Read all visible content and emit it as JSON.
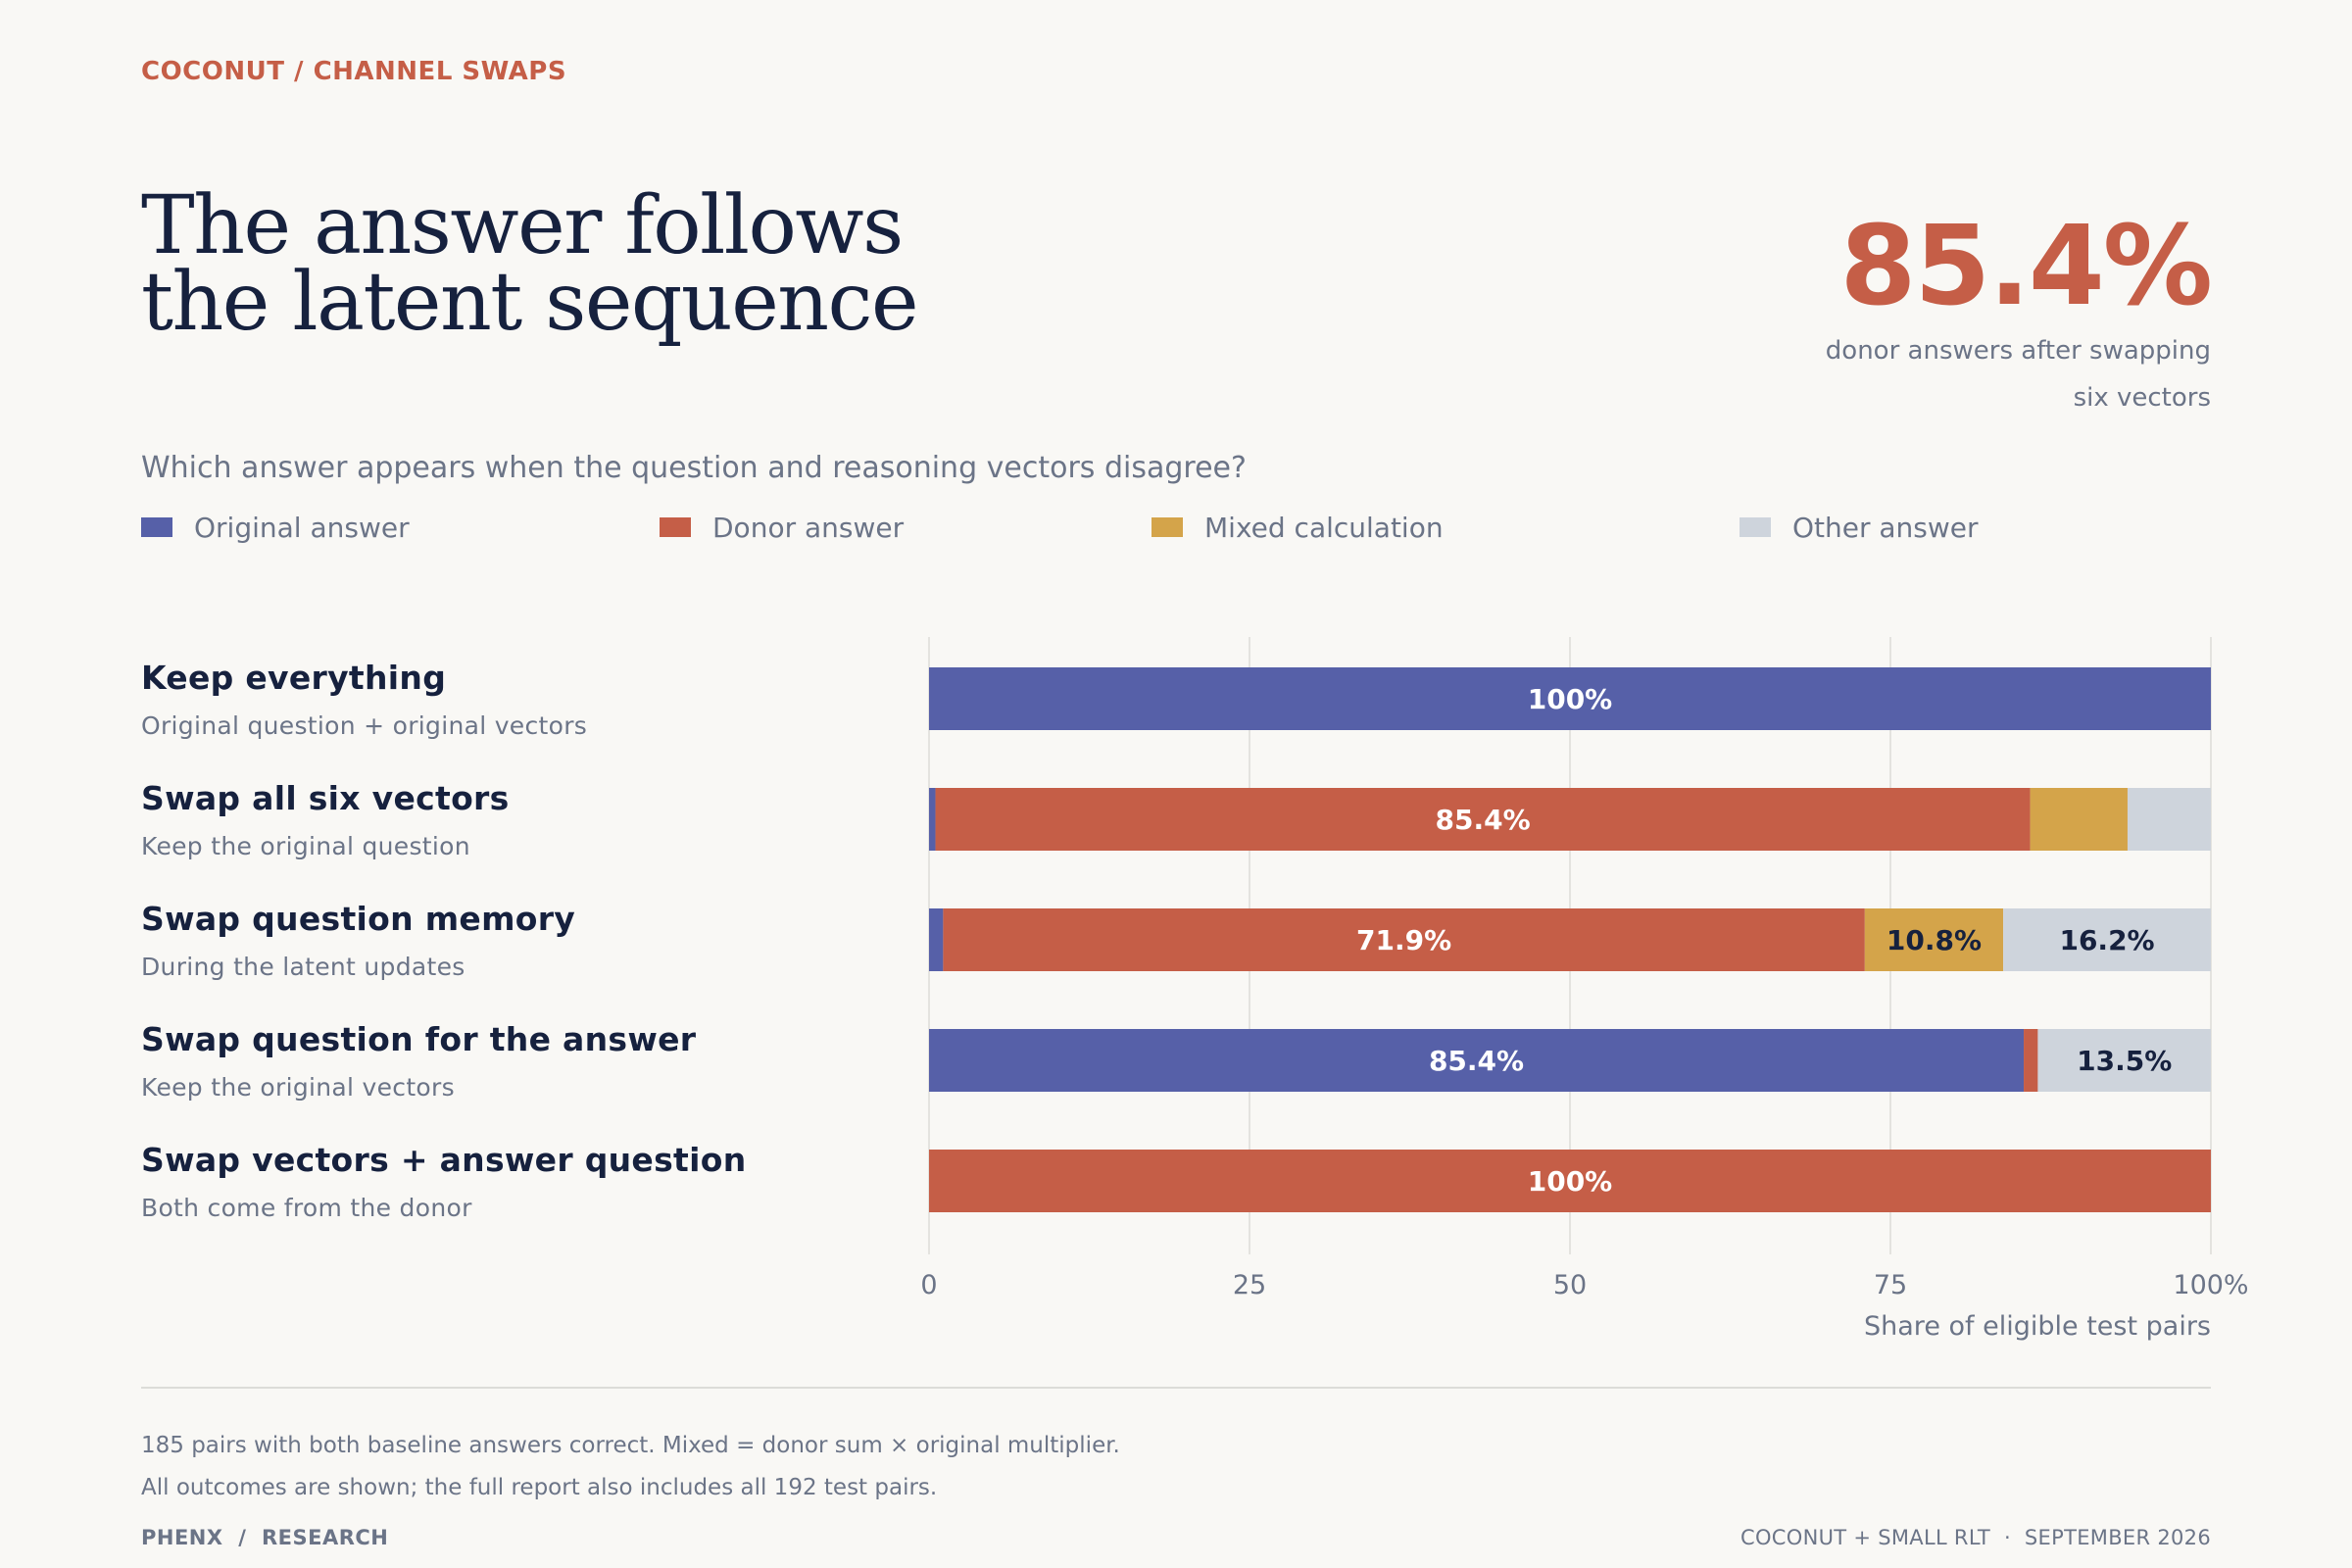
{
  "header": {
    "kicker": "COCONUT / CHANNEL SWAPS",
    "title": "The answer follows\nthe latent sequence",
    "stat_value": "85.4%",
    "stat_label": "donor answers after swapping six vectors"
  },
  "question": "Which answer appears when the question and reasoning vectors disagree?",
  "legend": [
    {
      "label": "Original answer",
      "color": "#5660a8"
    },
    {
      "label": "Donor answer",
      "color": "#c55e47"
    },
    {
      "label": "Mixed calculation",
      "color": "#d4a44a"
    },
    {
      "label": "Other answer",
      "color": "#ced4dc"
    }
  ],
  "rows": [
    {
      "title": "Keep everything",
      "subtitle": "Original question + original vectors"
    },
    {
      "title": "Swap all six vectors",
      "subtitle": "Keep the original question"
    },
    {
      "title": "Swap question memory",
      "subtitle": "During the latent updates"
    },
    {
      "title": "Swap question for the answer",
      "subtitle": "Keep the original vectors"
    },
    {
      "title": "Swap vectors + answer question",
      "subtitle": "Both come from the donor"
    }
  ],
  "chart_data": {
    "type": "bar",
    "orientation": "horizontal",
    "stacked": true,
    "categories": [
      "Keep everything",
      "Swap all six vectors",
      "Swap question memory",
      "Swap question for the answer",
      "Swap vectors + answer question"
    ],
    "series": [
      {
        "name": "Original answer",
        "color": "#5660a8",
        "values": [
          100,
          0.5,
          1.1,
          85.4,
          0
        ]
      },
      {
        "name": "Donor answer",
        "color": "#c55e47",
        "values": [
          0,
          85.4,
          71.9,
          1.1,
          100
        ]
      },
      {
        "name": "Mixed calculation",
        "color": "#d4a44a",
        "values": [
          0,
          7.6,
          10.8,
          0,
          0
        ]
      },
      {
        "name": "Other answer",
        "color": "#ced4dc",
        "values": [
          0,
          6.5,
          16.2,
          13.5,
          0
        ]
      }
    ],
    "data_labels": [
      [
        {
          "series": 0,
          "text": "100%"
        }
      ],
      [
        {
          "series": 1,
          "text": "85.4%"
        }
      ],
      [
        {
          "series": 1,
          "text": "71.9%"
        },
        {
          "series": 2,
          "text": "10.8%"
        },
        {
          "series": 3,
          "text": "16.2%"
        }
      ],
      [
        {
          "series": 0,
          "text": "85.4%"
        },
        {
          "series": 3,
          "text": "13.5%"
        }
      ],
      [
        {
          "series": 1,
          "text": "100%"
        }
      ]
    ],
    "xlim": [
      0,
      100
    ],
    "xticks": [
      "0",
      "25",
      "50",
      "75",
      "100%"
    ],
    "xtick_values": [
      0,
      25,
      50,
      75,
      100
    ],
    "xlabel": "Share of eligible test pairs",
    "grid": true
  },
  "notes": [
    "185 pairs with both baseline answers correct. Mixed = donor sum × original multiplier.",
    "All outcomes are shown; the full report also includes all 192 test pairs."
  ],
  "footer": {
    "left": "PHENX  /  RESEARCH",
    "right": "COCONUT + SMALL RLT  ·  SEPTEMBER 2026"
  }
}
